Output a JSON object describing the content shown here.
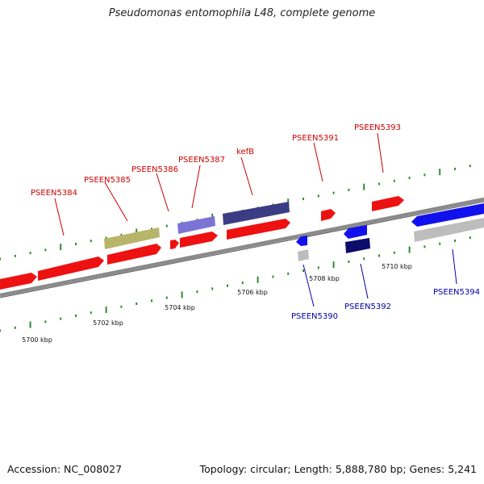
{
  "title": "Pseudomonas entomophila L48, complete genome",
  "footer": {
    "accession": "Accession: NC_008027",
    "summary": "Topology: circular; Length: 5,888,780 bp; Genes: 5,241"
  },
  "colors": {
    "backbone": "#8a8a8a",
    "tick": "#2e8b2e",
    "label_forward": "#cc0000",
    "label_reverse": "#0000aa",
    "gene_red": "#ee1111",
    "gene_blue": "#1111ee",
    "gene_olive": "#b8b46a",
    "gene_lavender": "#7c74d4",
    "gene_navy": "#3c3c84",
    "gene_darknavy": "#0c0c6c",
    "gene_gray": "#bdbdbd"
  },
  "scale_labels": [
    {
      "text": "5700 kbp",
      "pos": 5700
    },
    {
      "text": "5702 kbp",
      "pos": 5702
    },
    {
      "text": "5704 kbp",
      "pos": 5704
    },
    {
      "text": "5706 kbp",
      "pos": 5706
    },
    {
      "text": "5708 kbp",
      "pos": 5708
    },
    {
      "text": "5710 kbp",
      "pos": 5710
    }
  ],
  "gene_labels": [
    {
      "text": "PSEEN5384",
      "strand": "forward"
    },
    {
      "text": "PSEEN5385",
      "strand": "forward"
    },
    {
      "text": "PSEEN5386",
      "strand": "forward"
    },
    {
      "text": "PSEEN5387",
      "strand": "forward"
    },
    {
      "text": "kefB",
      "strand": "forward"
    },
    {
      "text": "PSEEN5391",
      "strand": "forward"
    },
    {
      "text": "PSEEN5393",
      "strand": "forward"
    },
    {
      "text": "PSEEN5390",
      "strand": "reverse"
    },
    {
      "text": "PSEEN5392",
      "strand": "reverse"
    },
    {
      "text": "PSEEN5394",
      "strand": "reverse"
    }
  ]
}
